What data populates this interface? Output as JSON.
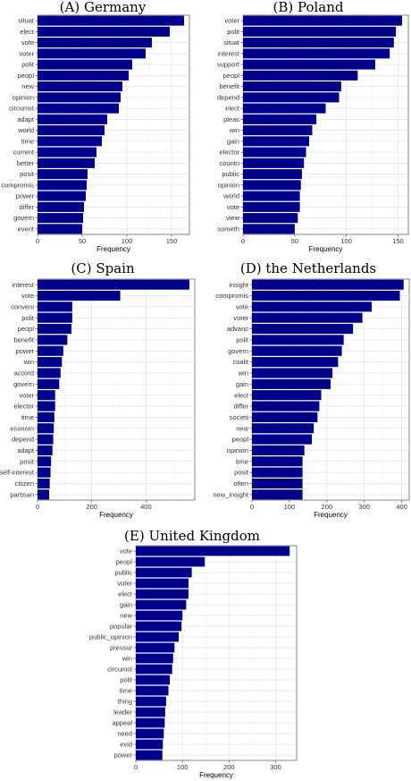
{
  "chart_data": [
    {
      "type": "bar",
      "orientation": "horizontal",
      "title": "(A) Germany",
      "xlabel": "Frequency",
      "ylabel": "",
      "xlim": [
        0,
        170
      ],
      "xticks": [
        0,
        50,
        100,
        150
      ],
      "grid": true,
      "bar_color": "#00008b",
      "categories": [
        "situat",
        "elect",
        "vote",
        "voter",
        "polit",
        "peopl",
        "new",
        "opinion",
        "circumst",
        "adapt",
        "world",
        "time",
        "current",
        "better",
        "posit",
        "compromis",
        "power",
        "differ",
        "govern",
        "event"
      ],
      "values": [
        164,
        148,
        128,
        121,
        106,
        102,
        95,
        93,
        91,
        78,
        75,
        72,
        66,
        64,
        56,
        55,
        54,
        52,
        51,
        50
      ]
    },
    {
      "type": "bar",
      "orientation": "horizontal",
      "title": "(B) Poland",
      "xlabel": "Frequency",
      "ylabel": "",
      "xlim": [
        0,
        160
      ],
      "xticks": [
        0,
        50,
        100,
        150
      ],
      "grid": true,
      "bar_color": "#00008b",
      "categories": [
        "voter",
        "polit",
        "situat",
        "interest",
        "support",
        "peopl",
        "benefit",
        "depend",
        "elect",
        "pleas",
        "win",
        "gain",
        "elector",
        "countri",
        "public",
        "opinion",
        "world",
        "vote",
        "view",
        "someth"
      ],
      "values": [
        154,
        148,
        146,
        142,
        128,
        111,
        95,
        93,
        80,
        71,
        67,
        64,
        61,
        59,
        57,
        56,
        55,
        55,
        53,
        50
      ]
    },
    {
      "type": "bar",
      "orientation": "horizontal",
      "title": "(C) Spain",
      "xlabel": "Frequency",
      "ylabel": "",
      "xlim": [
        0,
        580
      ],
      "xticks": [
        0,
        200,
        400
      ],
      "grid": true,
      "bar_color": "#00008b",
      "categories": [
        "interest",
        "vote",
        "conveni",
        "polit",
        "peopl",
        "benefit",
        "power",
        "win",
        "accord",
        "govern",
        "voter",
        "elector",
        "time",
        "econom",
        "depend",
        "adapt",
        "posit",
        "self-interest",
        "citizen",
        "partisan"
      ],
      "values": [
        560,
        305,
        128,
        128,
        125,
        110,
        95,
        90,
        85,
        80,
        65,
        65,
        62,
        60,
        58,
        55,
        50,
        48,
        45,
        43
      ]
    },
    {
      "type": "bar",
      "orientation": "horizontal",
      "title": "(D) the Netherlands",
      "xlabel": "Frequency",
      "ylabel": "",
      "xlim": [
        0,
        420
      ],
      "xticks": [
        0,
        100,
        200,
        300,
        400
      ],
      "grid": true,
      "bar_color": "#00008b",
      "categories": [
        "insight",
        "compromis",
        "vote",
        "voter",
        "advanc",
        "polit",
        "govern",
        "coalit",
        "win",
        "gain",
        "elect",
        "differ",
        "societi",
        "new",
        "peopl",
        "opinion",
        "time",
        "posit",
        "often",
        "new_insight"
      ],
      "values": [
        405,
        395,
        320,
        295,
        270,
        245,
        240,
        230,
        215,
        210,
        185,
        180,
        175,
        165,
        160,
        140,
        135,
        135,
        135,
        135
      ]
    },
    {
      "type": "bar",
      "orientation": "horizontal",
      "title": "(E) United Kingdom",
      "xlabel": "Frequency",
      "ylabel": "",
      "xlim": [
        0,
        345
      ],
      "xticks": [
        0,
        100,
        200,
        300
      ],
      "grid": true,
      "bar_color": "#00008b",
      "categories": [
        "vote",
        "peopl",
        "public",
        "voter",
        "elect",
        "gain",
        "new",
        "popular",
        "public_opinion",
        "pressur",
        "win",
        "circumst",
        "polit",
        "time",
        "thing",
        "leader",
        "appeal",
        "need",
        "evid",
        "power"
      ],
      "values": [
        330,
        148,
        120,
        113,
        113,
        108,
        100,
        98,
        92,
        83,
        80,
        78,
        73,
        70,
        65,
        63,
        62,
        60,
        58,
        57
      ]
    }
  ]
}
